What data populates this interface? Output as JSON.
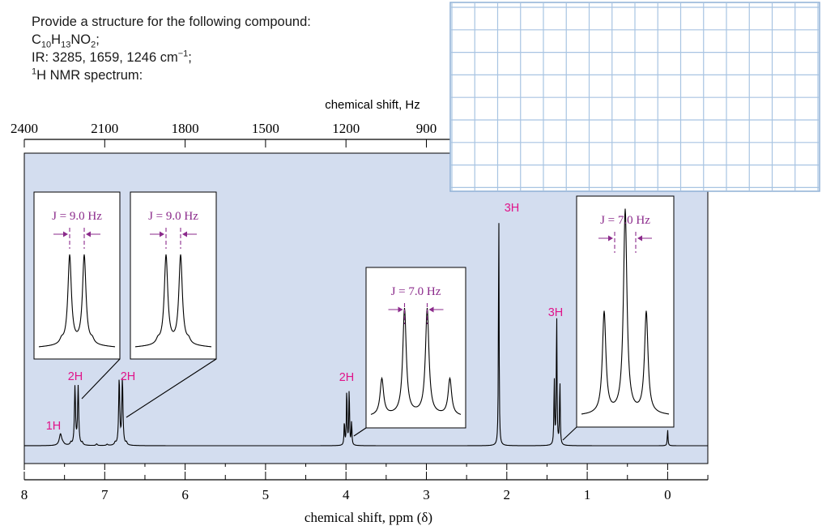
{
  "problem": {
    "line1": "Provide a structure for the following compound:",
    "formula": {
      "c": "C",
      "c_n": "10",
      "h": "H",
      "h_n": "13",
      "rest": "NO",
      "o_n": "2",
      "end": ";"
    },
    "ir": {
      "text": "IR: 3285, 1659, 1246 cm",
      "sup": "−1",
      "end": ";"
    },
    "nmr": {
      "sup": "1",
      "text": "H NMR spectrum:"
    }
  },
  "colors": {
    "panel": "#d3ddef",
    "grid": "#a8c4e2",
    "integration": "#e0148a",
    "annotation": "#8b2a8b",
    "trace": "#000000"
  },
  "chart_data": {
    "type": "line",
    "xlabel": "chemical shift, ppm (δ)",
    "x2label": "chemical shift, Hz",
    "xlim": [
      8.0,
      -0.5
    ],
    "x_ticks": [
      "8",
      "7",
      "6",
      "5",
      "4",
      "3",
      "2",
      "1",
      "0"
    ],
    "hz_ticks": [
      "2400",
      "2100",
      "1800",
      "1500",
      "1200",
      "900"
    ],
    "peaks": [
      {
        "shift": 7.55,
        "multiplicity": "singlet",
        "integration": "1H"
      },
      {
        "shift": 7.35,
        "multiplicity": "doublet",
        "integration": "2H",
        "J": "J = 9.0 Hz"
      },
      {
        "shift": 6.8,
        "multiplicity": "doublet",
        "integration": "2H",
        "J": "J = 9.0 Hz"
      },
      {
        "shift": 3.98,
        "multiplicity": "quartet",
        "integration": "2H",
        "J": "J = 7.0 Hz"
      },
      {
        "shift": 2.1,
        "multiplicity": "singlet",
        "integration": "3H"
      },
      {
        "shift": 1.38,
        "multiplicity": "triplet",
        "integration": "3H",
        "J": "J = 7.0 Hz"
      },
      {
        "shift": 0.0,
        "multiplicity": "singlet",
        "integration": ""
      }
    ]
  }
}
